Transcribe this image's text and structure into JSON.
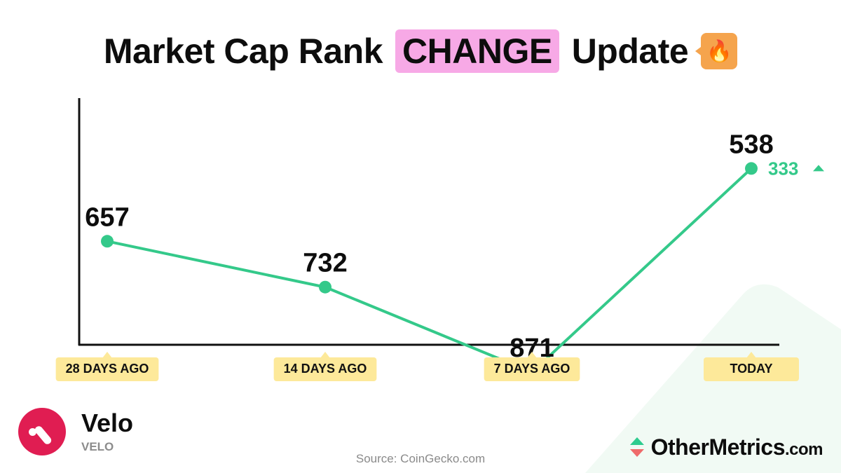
{
  "header": {
    "title_prefix": "Market Cap Rank",
    "title_highlight": "CHANGE",
    "title_suffix": "Update",
    "badge_emoji": "🔥"
  },
  "colors": {
    "line": "#34c98a",
    "highlight": "#f7a9e6",
    "tick_label_bg": "#fde99a",
    "badge": "#f5a44d",
    "brand": "#e01d52"
  },
  "chart_data": {
    "type": "line",
    "categories": [
      "28 DAYS AGO",
      "14 DAYS AGO",
      "7 DAYS AGO",
      "TODAY"
    ],
    "series": [
      {
        "values": [
          657,
          732,
          871,
          538
        ]
      }
    ],
    "data_labels": [
      "657",
      "732",
      "871",
      "538"
    ],
    "ylim": [
      950,
      400
    ],
    "y_inverted": true,
    "change": {
      "value": "333",
      "direction": "up"
    },
    "grid": false
  },
  "brand": {
    "name": "Velo",
    "ticker": "VELO",
    "logo_icon": "velo-logo-icon"
  },
  "source": "Source: CoinGecko.com",
  "watermark": {
    "name": "OtherMetrics",
    "suffix": ".com",
    "icon": "up-down-arrows-icon"
  }
}
